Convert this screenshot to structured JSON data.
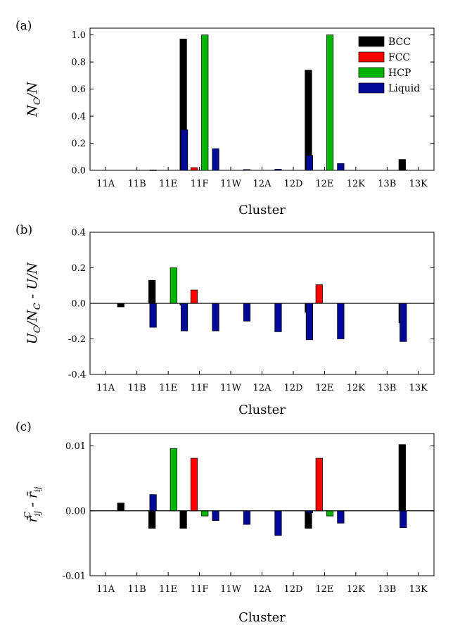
{
  "figure": {
    "xlabel": "Cluster",
    "categories": [
      "11A",
      "11B",
      "11E",
      "11F",
      "11W",
      "12A",
      "12D",
      "12E",
      "12K",
      "13B",
      "13K"
    ],
    "colors": {
      "BCC": "#000000",
      "FCC": "#ff0000",
      "HCP": "#00b400",
      "Liquid": "#000a96"
    }
  },
  "chart_data": [
    {
      "type": "bar",
      "panel": "(a)",
      "ylabel": "N_C/N",
      "ylabel_main": "N",
      "ylabel_sub": "C",
      "ylabel_rest": "/N",
      "xlabel": "Cluster",
      "ylim": [
        0,
        1.05
      ],
      "yticks": [
        0.0,
        0.2,
        0.4,
        0.6,
        0.8,
        1.0
      ],
      "ytick_labels": [
        "0.0",
        "0.2",
        "0.4",
        "0.6",
        "0.8",
        "1.0"
      ],
      "legend": {
        "position": "top-right",
        "entries": [
          "BCC",
          "FCC",
          "HCP",
          "Liquid"
        ]
      },
      "categories": [
        "11A",
        "11B",
        "11E",
        "11F",
        "11W",
        "12A",
        "12D",
        "12E",
        "12K",
        "13B",
        "13K"
      ],
      "series": [
        {
          "name": "BCC",
          "values": [
            0,
            0,
            0,
            0.97,
            0,
            0,
            0,
            0.74,
            0,
            0,
            0.08
          ]
        },
        {
          "name": "FCC",
          "values": [
            0,
            0,
            0,
            0.02,
            0,
            0,
            0,
            0,
            0,
            0,
            0
          ]
        },
        {
          "name": "HCP",
          "values": [
            0,
            0,
            0,
            1.0,
            0,
            0,
            0,
            1.0,
            0,
            0,
            0
          ]
        },
        {
          "name": "Liquid",
          "values": [
            0,
            0.002,
            0.3,
            0.16,
            0.006,
            0.008,
            0.11,
            0.05,
            0,
            0.003,
            0
          ]
        }
      ]
    },
    {
      "type": "bar",
      "panel": "(b)",
      "ylabel": "U_C/N_C - U/N",
      "ylabel_main": "U",
      "ylabel_sub": "C",
      "ylabel_rest": "/N",
      "ylabel_sub2": "C",
      "ylabel_rest2": " - U/N",
      "xlabel": "Cluster",
      "ylim": [
        -0.4,
        0.4
      ],
      "yticks": [
        -0.4,
        -0.2,
        0.0,
        0.2,
        0.4
      ],
      "ytick_labels": [
        "-0.4",
        "-0.2",
        "0.0",
        "0.2",
        "0.4"
      ],
      "categories": [
        "11A",
        "11B",
        "11E",
        "11F",
        "11W",
        "12A",
        "12D",
        "12E",
        "12K",
        "13B",
        "13K"
      ],
      "series": [
        {
          "name": "BCC",
          "values": [
            0,
            -0.02,
            0.13,
            -0.01,
            0,
            0,
            0,
            -0.05,
            0,
            0,
            -0.11
          ]
        },
        {
          "name": "FCC",
          "values": [
            0,
            0,
            0,
            0.075,
            0,
            0,
            0,
            0.105,
            0,
            0,
            0
          ]
        },
        {
          "name": "HCP",
          "values": [
            0,
            0,
            0.2,
            0,
            0,
            0,
            0,
            0,
            0,
            0,
            0
          ]
        },
        {
          "name": "Liquid",
          "values": [
            0,
            -0.135,
            -0.155,
            -0.155,
            -0.1,
            -0.16,
            -0.205,
            -0.2,
            0,
            -0.215,
            0
          ]
        }
      ]
    },
    {
      "type": "bar",
      "panel": "(c)",
      "ylabel": "r̄_ij^C - r̄_ij",
      "ylabel_r": "r̄",
      "ylabel_sub": "ij",
      "ylabel_sup": "C",
      "ylabel_mid": " - ",
      "xlabel": "Cluster",
      "ylim": [
        -0.01,
        0.0119
      ],
      "yticks": [
        -0.01,
        0.0,
        0.01
      ],
      "ytick_labels": [
        "-0.01",
        "0.00",
        "0.01"
      ],
      "categories": [
        "11A",
        "11B",
        "11E",
        "11F",
        "11W",
        "12A",
        "12D",
        "12E",
        "12K",
        "13B",
        "13K"
      ],
      "series": [
        {
          "name": "BCC",
          "values": [
            0,
            0.0012,
            -0.0027,
            -0.0027,
            0,
            0,
            0,
            -0.0027,
            0,
            0,
            0.0102
          ]
        },
        {
          "name": "FCC",
          "values": [
            0,
            0,
            0,
            0.0081,
            0,
            0,
            0,
            0.0081,
            0,
            0,
            0
          ]
        },
        {
          "name": "HCP",
          "values": [
            0,
            0,
            0.0096,
            -0.0008,
            0,
            0,
            0,
            -0.0008,
            0,
            0,
            0
          ]
        },
        {
          "name": "Liquid",
          "values": [
            0,
            0.0025,
            0,
            -0.0015,
            -0.0021,
            -0.0038,
            -0.0003,
            -0.0019,
            0,
            -0.0026,
            0
          ]
        }
      ]
    }
  ]
}
